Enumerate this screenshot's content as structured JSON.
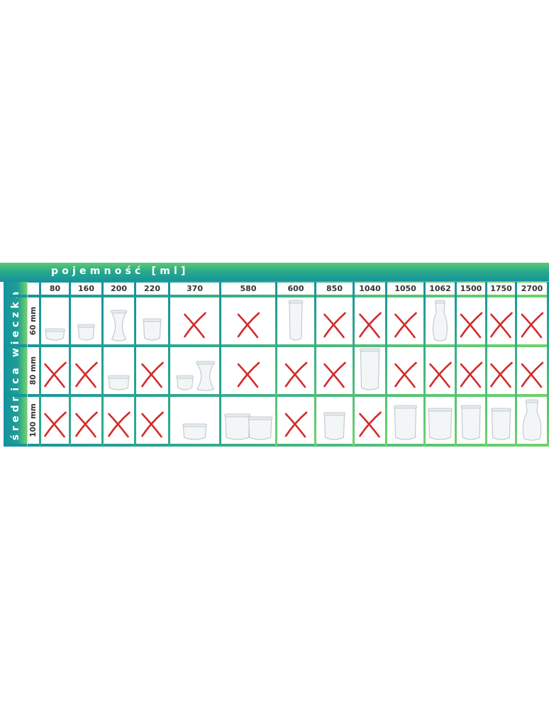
{
  "header": {
    "title": "pojemność [ml]"
  },
  "side": {
    "title": "średnica wieczka"
  },
  "columns": [
    "80",
    "160",
    "200",
    "220",
    "370",
    "580",
    "600",
    "850",
    "1040",
    "1050",
    "1062",
    "1500",
    "1750",
    "2700"
  ],
  "rows": [
    {
      "label": "60 mm",
      "cells": [
        "jar",
        "jar",
        "jar",
        "jar",
        "x",
        "x",
        "jar",
        "x",
        "x",
        "x",
        "jar",
        "x",
        "x",
        "x"
      ]
    },
    {
      "label": "80 mm",
      "cells": [
        "x",
        "x",
        "jar",
        "x",
        "jar2",
        "x",
        "x",
        "x",
        "jar",
        "x",
        "x",
        "x",
        "x",
        "x"
      ]
    },
    {
      "label": "100 mm",
      "cells": [
        "x",
        "x",
        "x",
        "x",
        "jar",
        "jar2",
        "x",
        "jar",
        "x",
        "jar",
        "jar",
        "jar",
        "jar",
        "jar"
      ]
    }
  ],
  "colors": {
    "teal": "#14939e",
    "green": "#6fd36a",
    "cross": "#d42a2a",
    "glass": "#b9c2c6"
  }
}
